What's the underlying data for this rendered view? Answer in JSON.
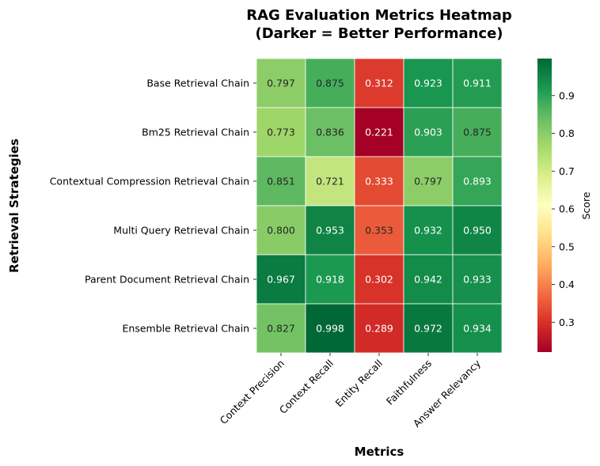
{
  "chart_data": {
    "type": "heatmap",
    "title": "RAG Evaluation Metrics Heatmap\n(Darker = Better Performance)",
    "xlabel": "Metrics",
    "ylabel": "Retrieval Strategies",
    "x_categories": [
      "Context Precision",
      "Context Recall",
      "Entity Recall",
      "Faithfulness",
      "Answer Relevancy"
    ],
    "y_categories": [
      "Base Retrieval Chain",
      "Bm25 Retrieval Chain",
      "Contextual Compression Retrieval Chain",
      "Multi Query Retrieval Chain",
      "Parent Document Retrieval Chain",
      "Ensemble Retrieval Chain"
    ],
    "values": [
      [
        0.797,
        0.875,
        0.312,
        0.923,
        0.911
      ],
      [
        0.773,
        0.836,
        0.221,
        0.903,
        0.875
      ],
      [
        0.851,
        0.721,
        0.333,
        0.797,
        0.893
      ],
      [
        0.8,
        0.953,
        0.353,
        0.932,
        0.95
      ],
      [
        0.967,
        0.918,
        0.302,
        0.942,
        0.933
      ],
      [
        0.827,
        0.998,
        0.289,
        0.972,
        0.934
      ]
    ],
    "colormap": "RdYlGn",
    "colorbar": {
      "label": "Score",
      "range": [
        0.221,
        0.998
      ],
      "ticks": [
        0.3,
        0.4,
        0.5,
        0.6,
        0.7,
        0.8,
        0.9
      ]
    }
  }
}
